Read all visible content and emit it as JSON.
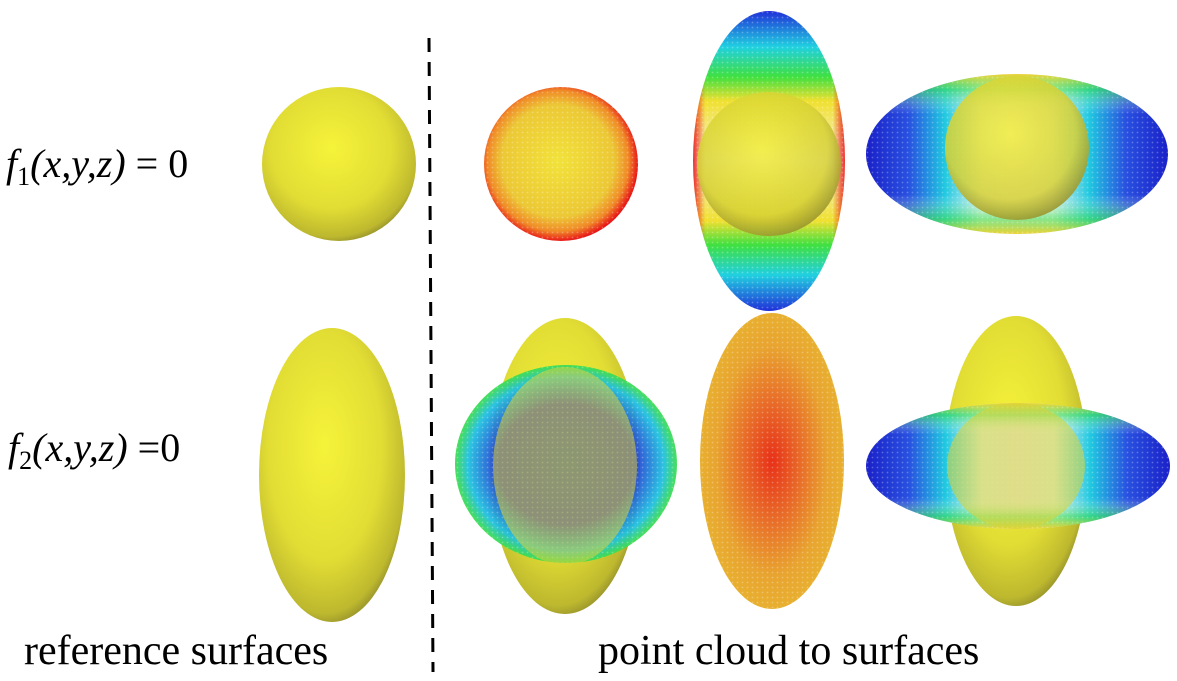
{
  "equations": {
    "f1": {
      "func": "f",
      "sub": "1",
      "args": "(x,y,z)",
      "rhs": "= 0"
    },
    "f2": {
      "func": "f",
      "sub": "2",
      "args": "(x,y,z)",
      "rhs": "=0"
    }
  },
  "captions": {
    "left": "reference surfaces",
    "right": "point cloud to surfaces"
  },
  "colors": {
    "surface": "#e8e438",
    "surface_edge": "#7a7a2a",
    "cloud_low": "#1a1acc",
    "cloud_mid": "#20d0d8",
    "cloud_green": "#30d030",
    "cloud_high": "#e81818",
    "divider": "#000000"
  }
}
